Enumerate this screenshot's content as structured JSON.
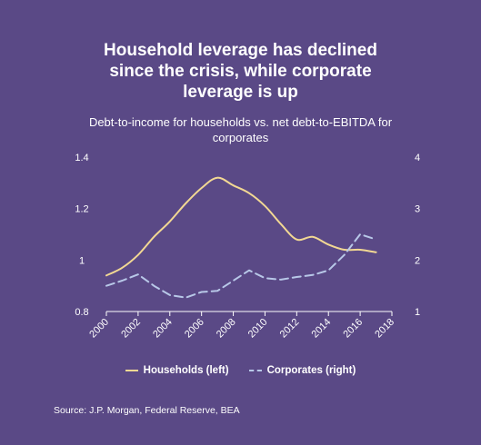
{
  "title_lines": [
    "Household leverage has declined",
    "since the crisis, while corporate",
    "leverage is up"
  ],
  "subtitle_lines": [
    "Debt-to-income for households vs. net debt-to-EBITDA for",
    "corporates"
  ],
  "source": "Source: J.P. Morgan, Federal Reserve, BEA",
  "colors": {
    "background": "#5a4986",
    "households": "#f2d893",
    "corporates": "#b8c8e8",
    "axis": "#ffffff"
  },
  "chart_data": {
    "type": "line",
    "x_ticks": [
      "2000",
      "2002",
      "2004",
      "2006",
      "2008",
      "2010",
      "2012",
      "2014",
      "2016",
      "2018"
    ],
    "xlim": [
      2000,
      2018
    ],
    "y_left": {
      "ticks": [
        "0.8",
        "1",
        "1.2",
        "1.4"
      ],
      "range": [
        0.8,
        1.4
      ]
    },
    "y_right": {
      "ticks": [
        "1",
        "2",
        "3",
        "4"
      ],
      "range": [
        1,
        4
      ]
    },
    "legend_position": "bottom",
    "series": [
      {
        "name": "Households (left)",
        "axis": "left",
        "style": "solid",
        "x": [
          2000,
          2001,
          2002,
          2003,
          2004,
          2005,
          2006,
          2007,
          2008,
          2009,
          2010,
          2011,
          2012,
          2013,
          2014,
          2015,
          2016,
          2017
        ],
        "values": [
          0.94,
          0.97,
          1.02,
          1.09,
          1.15,
          1.22,
          1.28,
          1.32,
          1.29,
          1.26,
          1.21,
          1.14,
          1.08,
          1.09,
          1.06,
          1.04,
          1.04,
          1.03
        ]
      },
      {
        "name": "Corporates (right)",
        "axis": "right",
        "style": "dashed",
        "x": [
          2000,
          2001,
          2002,
          2003,
          2004,
          2005,
          2006,
          2007,
          2008,
          2009,
          2010,
          2011,
          2012,
          2013,
          2014,
          2015,
          2016,
          2017
        ],
        "values": [
          1.5,
          1.6,
          1.72,
          1.5,
          1.32,
          1.27,
          1.38,
          1.4,
          1.6,
          1.8,
          1.65,
          1.62,
          1.67,
          1.71,
          1.8,
          2.1,
          2.5,
          2.4
        ]
      }
    ]
  }
}
